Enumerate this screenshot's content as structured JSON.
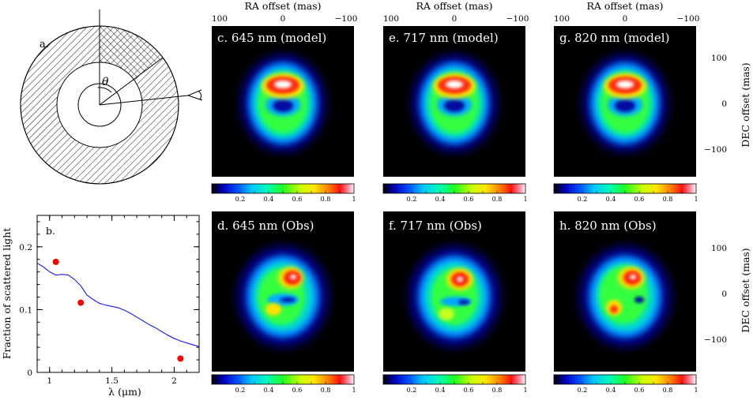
{
  "figure": {
    "top_axis_label": "RA offset (mas)",
    "right_axis_label": "DEC offset (mas)",
    "ra_ticks": [
      "100",
      "0",
      "−100"
    ],
    "dec_ticks": [
      "100",
      "0",
      "−100"
    ],
    "colorbar_ticks": [
      "0.2",
      "0.4",
      "0.6",
      "0.8",
      "1"
    ]
  },
  "diagram": {
    "label": "a.",
    "angle_symbol": "θ",
    "icons": [
      "shell-diagram",
      "eye-icon"
    ]
  },
  "panels": [
    {
      "label": "c. 645 nm (model)"
    },
    {
      "label": "e. 717 nm (model)"
    },
    {
      "label": "g. 820 nm (model)"
    },
    {
      "label": "d. 645 nm (Obs)"
    },
    {
      "label": "f. 717 nm (Obs)"
    },
    {
      "label": "h. 820 nm (Obs)"
    }
  ],
  "chart_data": {
    "type": "line",
    "panel_label": "b.",
    "xlabel": "λ (μm)",
    "ylabel": "Fraction of scattered light",
    "xlim": [
      0.9,
      2.2
    ],
    "ylim": [
      0,
      0.25
    ],
    "x_ticks": [
      "1",
      "1.5",
      "2"
    ],
    "y_ticks": [
      "0",
      "0.1",
      "0.2"
    ],
    "colors": {
      "line": "#0000ff",
      "points": "#ff0000"
    },
    "series": [
      {
        "kind": "line",
        "x": [
          0.9,
          0.95,
          1.0,
          1.05,
          1.1,
          1.15,
          1.2,
          1.25,
          1.3,
          1.35,
          1.4,
          1.45,
          1.5,
          1.55,
          1.6,
          1.65,
          1.7,
          1.75,
          1.8,
          1.85,
          1.9,
          1.95,
          2.0,
          2.05,
          2.1,
          2.15,
          2.2
        ],
        "y": [
          0.174,
          0.168,
          0.16,
          0.155,
          0.156,
          0.155,
          0.148,
          0.138,
          0.123,
          0.116,
          0.11,
          0.107,
          0.105,
          0.103,
          0.099,
          0.094,
          0.088,
          0.082,
          0.076,
          0.071,
          0.065,
          0.059,
          0.054,
          0.05,
          0.047,
          0.044,
          0.041
        ]
      },
      {
        "kind": "points",
        "x": [
          1.05,
          1.25,
          2.05
        ],
        "y": [
          0.176,
          0.111,
          0.022
        ]
      }
    ]
  }
}
